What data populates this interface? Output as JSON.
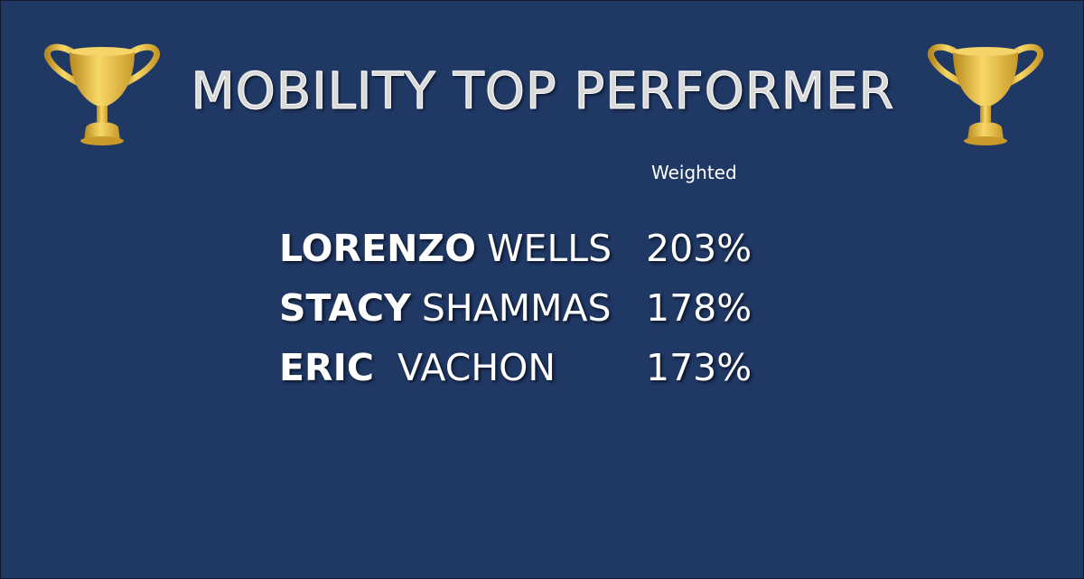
{
  "header": {
    "title": "MOBILITY TOP PERFORMER",
    "column": "Weighted"
  },
  "table": {
    "rows": [
      {
        "first": "LORENZO",
        "last": "WELLS",
        "value": "203%"
      },
      {
        "first": "STACY",
        "last": "SHAMMAS",
        "value": "178%"
      },
      {
        "first": "ERIC",
        "last": "VACHON",
        "value": "173%"
      }
    ]
  }
}
